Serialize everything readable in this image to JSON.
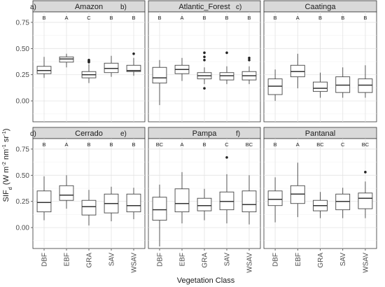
{
  "chart_data": {
    "type": "boxplot",
    "xlabel": "Vegetation Class",
    "ylabel_parts": [
      "SIF",
      "d",
      " (W m",
      "-2",
      " nm",
      "-1",
      " sr",
      "-1",
      ")"
    ],
    "ylim": [
      -0.2,
      0.85
    ],
    "yticks": [
      0.0,
      0.25,
      0.5,
      0.75
    ],
    "ytick_labels": [
      "0.00",
      "0.25",
      "0.50",
      "0.75"
    ],
    "categories": [
      "DBF",
      "EBF",
      "GRA",
      "SAV",
      "WSAV"
    ],
    "panels": [
      {
        "letter": "a)",
        "title": "Amazon",
        "groups": [
          "B",
          "A",
          "C",
          "B",
          "B"
        ],
        "boxes": [
          {
            "min": 0.22,
            "q1": 0.26,
            "median": 0.29,
            "q3": 0.33,
            "max": 0.42,
            "outliers": []
          },
          {
            "min": 0.32,
            "q1": 0.37,
            "median": 0.4,
            "q3": 0.42,
            "max": 0.45,
            "outliers": []
          },
          {
            "min": 0.17,
            "q1": 0.22,
            "median": 0.25,
            "q3": 0.28,
            "max": 0.35,
            "outliers": [
              0.37,
              0.38,
              0.39
            ]
          },
          {
            "min": 0.23,
            "q1": 0.27,
            "median": 0.31,
            "q3": 0.36,
            "max": 0.43,
            "outliers": []
          },
          {
            "min": 0.24,
            "q1": 0.28,
            "median": 0.29,
            "q3": 0.34,
            "max": 0.41,
            "outliers": [
              0.45
            ]
          }
        ]
      },
      {
        "letter": "b)",
        "title": "Atlantic_Forest",
        "groups": [
          "B",
          "A",
          "B",
          "B",
          "B"
        ],
        "boxes": [
          {
            "min": -0.04,
            "q1": 0.17,
            "median": 0.22,
            "q3": 0.32,
            "max": 0.39,
            "outliers": []
          },
          {
            "min": 0.19,
            "q1": 0.26,
            "median": 0.3,
            "q3": 0.34,
            "max": 0.41,
            "outliers": []
          },
          {
            "min": 0.16,
            "q1": 0.21,
            "median": 0.24,
            "q3": 0.27,
            "max": 0.32,
            "outliers": [
              0.12,
              0.39,
              0.42,
              0.46
            ]
          },
          {
            "min": 0.16,
            "q1": 0.2,
            "median": 0.24,
            "q3": 0.27,
            "max": 0.33,
            "outliers": [
              0.46
            ]
          },
          {
            "min": 0.16,
            "q1": 0.2,
            "median": 0.24,
            "q3": 0.28,
            "max": 0.33,
            "outliers": [
              0.39,
              0.41
            ]
          }
        ]
      },
      {
        "letter": "c)",
        "title": "Caatinga",
        "groups": [
          "B",
          "A",
          "B",
          "B",
          "B"
        ],
        "boxes": [
          {
            "min": 0.0,
            "q1": 0.06,
            "median": 0.14,
            "q3": 0.21,
            "max": 0.3,
            "outliers": []
          },
          {
            "min": 0.12,
            "q1": 0.23,
            "median": 0.28,
            "q3": 0.34,
            "max": 0.45,
            "outliers": []
          },
          {
            "min": 0.03,
            "q1": 0.09,
            "median": 0.12,
            "q3": 0.18,
            "max": 0.27,
            "outliers": []
          },
          {
            "min": 0.03,
            "q1": 0.08,
            "median": 0.15,
            "q3": 0.23,
            "max": 0.32,
            "outliers": []
          },
          {
            "min": 0.03,
            "q1": 0.08,
            "median": 0.15,
            "q3": 0.21,
            "max": 0.34,
            "outliers": []
          }
        ]
      },
      {
        "letter": "d)",
        "title": "Cerrado",
        "groups": [
          "B",
          "A",
          "B",
          "B",
          "B"
        ],
        "boxes": [
          {
            "min": 0.07,
            "q1": 0.15,
            "median": 0.24,
            "q3": 0.35,
            "max": 0.49,
            "outliers": []
          },
          {
            "min": 0.18,
            "q1": 0.26,
            "median": 0.31,
            "q3": 0.4,
            "max": 0.5,
            "outliers": []
          },
          {
            "min": 0.02,
            "q1": 0.12,
            "median": 0.2,
            "q3": 0.26,
            "max": 0.36,
            "outliers": []
          },
          {
            "min": 0.06,
            "q1": 0.14,
            "median": 0.23,
            "q3": 0.32,
            "max": 0.39,
            "outliers": []
          },
          {
            "min": 0.08,
            "q1": 0.15,
            "median": 0.21,
            "q3": 0.32,
            "max": 0.38,
            "outliers": []
          }
        ]
      },
      {
        "letter": "e)",
        "title": "Pampa",
        "groups": [
          "BC",
          "A",
          "B",
          "C",
          "BC"
        ],
        "boxes": [
          {
            "min": -0.18,
            "q1": 0.07,
            "median": 0.17,
            "q3": 0.29,
            "max": 0.41,
            "outliers": []
          },
          {
            "min": 0.04,
            "q1": 0.15,
            "median": 0.23,
            "q3": 0.37,
            "max": 0.53,
            "outliers": []
          },
          {
            "min": 0.07,
            "q1": 0.16,
            "median": 0.21,
            "q3": 0.28,
            "max": 0.37,
            "outliers": []
          },
          {
            "min": 0.04,
            "q1": 0.17,
            "median": 0.25,
            "q3": 0.34,
            "max": 0.51,
            "outliers": [
              0.67
            ]
          },
          {
            "min": 0.03,
            "q1": 0.15,
            "median": 0.22,
            "q3": 0.35,
            "max": 0.5,
            "outliers": []
          }
        ]
      },
      {
        "letter": "f)",
        "title": "Pantanal",
        "groups": [
          "B",
          "A",
          "BC",
          "C",
          "BC"
        ],
        "boxes": [
          {
            "min": 0.05,
            "q1": 0.21,
            "median": 0.27,
            "q3": 0.35,
            "max": 0.48,
            "outliers": []
          },
          {
            "min": 0.1,
            "q1": 0.23,
            "median": 0.32,
            "q3": 0.4,
            "max": 0.62,
            "outliers": []
          },
          {
            "min": 0.09,
            "q1": 0.16,
            "median": 0.21,
            "q3": 0.26,
            "max": 0.34,
            "outliers": []
          },
          {
            "min": 0.09,
            "q1": 0.17,
            "median": 0.25,
            "q3": 0.32,
            "max": 0.38,
            "outliers": []
          },
          {
            "min": 0.09,
            "q1": 0.18,
            "median": 0.28,
            "q3": 0.33,
            "max": 0.44,
            "outliers": [
              0.53
            ]
          }
        ]
      }
    ],
    "grid": true,
    "legend": "none"
  }
}
